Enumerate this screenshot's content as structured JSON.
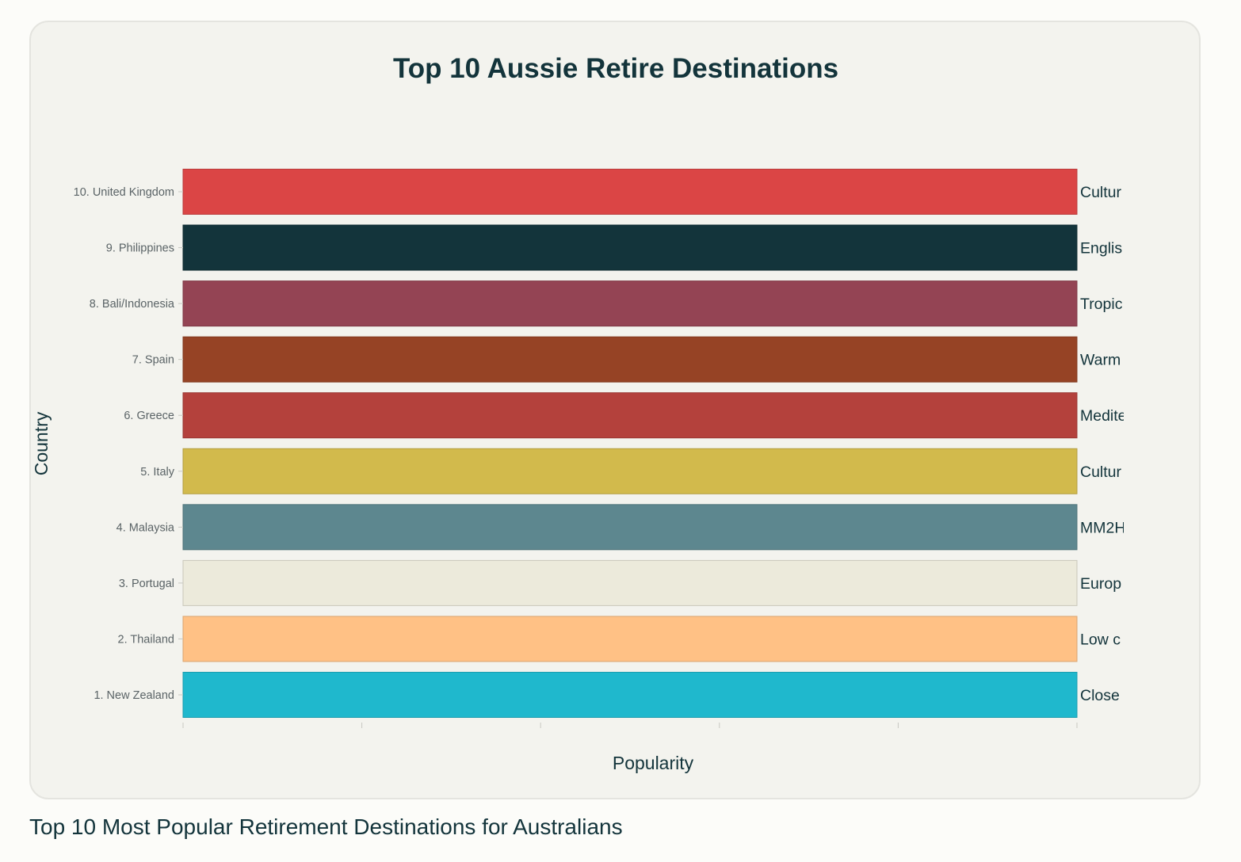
{
  "caption": "Top 10 Most Popular Retirement Destinations for Australians",
  "colors": {
    "text": "#13343b",
    "tick_text": "#5a6366",
    "card_bg": "#f3f3ee"
  },
  "chart_data": {
    "type": "bar",
    "orientation": "horizontal",
    "title": "Top 10 Aussie Retire Destinations",
    "xlabel": "Popularity",
    "ylabel": "Country",
    "xlim": [
      0,
      1
    ],
    "x_tick_values": [
      0,
      0.2,
      0.4,
      0.6,
      0.8,
      1
    ],
    "x_tick_labels_shown": false,
    "grid": false,
    "categories": [
      "1. New Zealand",
      "2. Thailand",
      "3. Portugal",
      "4. Malaysia",
      "5. Italy",
      "6. Greece",
      "7. Spain",
      "8. Bali/Indonesia",
      "9. Philippines",
      "10. United Kingdom"
    ],
    "values": [
      1,
      1,
      1,
      1,
      1,
      1,
      1,
      1,
      1,
      1
    ],
    "bar_labels": [
      "Close",
      "Low c",
      "Europ",
      "MM2H",
      "Cultur",
      "Medite",
      "Warm",
      "Tropic",
      "Englis",
      "Cultur"
    ],
    "colors": [
      "#1fb8cd",
      "#ffc185",
      "#eceadb",
      "#5d878f",
      "#d2ba4c",
      "#b4413c",
      "#964325",
      "#944454",
      "#13343b",
      "#db4545"
    ]
  }
}
